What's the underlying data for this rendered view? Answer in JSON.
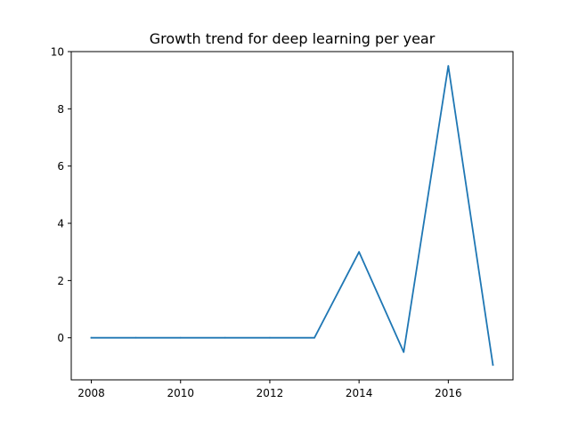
{
  "chart_data": {
    "type": "line",
    "title": "Growth trend for deep learning per year",
    "xlabel": "",
    "ylabel": "",
    "x": [
      2008,
      2009,
      2010,
      2011,
      2012,
      2013,
      2014,
      2015,
      2016,
      2017
    ],
    "series": [
      {
        "values": [
          0,
          0,
          0,
          0,
          0,
          0,
          3,
          -0.5,
          9.5,
          -0.95
        ]
      }
    ],
    "xlim": [
      2007.55,
      2017.45
    ],
    "ylim": [
      -1.47,
      10
    ],
    "xticks": [
      2008,
      2010,
      2012,
      2014,
      2016
    ],
    "yticks": [
      0,
      2,
      4,
      6,
      8,
      10
    ],
    "grid": false,
    "colors": {
      "line": "#1f77b4",
      "axes": "#000000",
      "background": "#ffffff"
    }
  }
}
